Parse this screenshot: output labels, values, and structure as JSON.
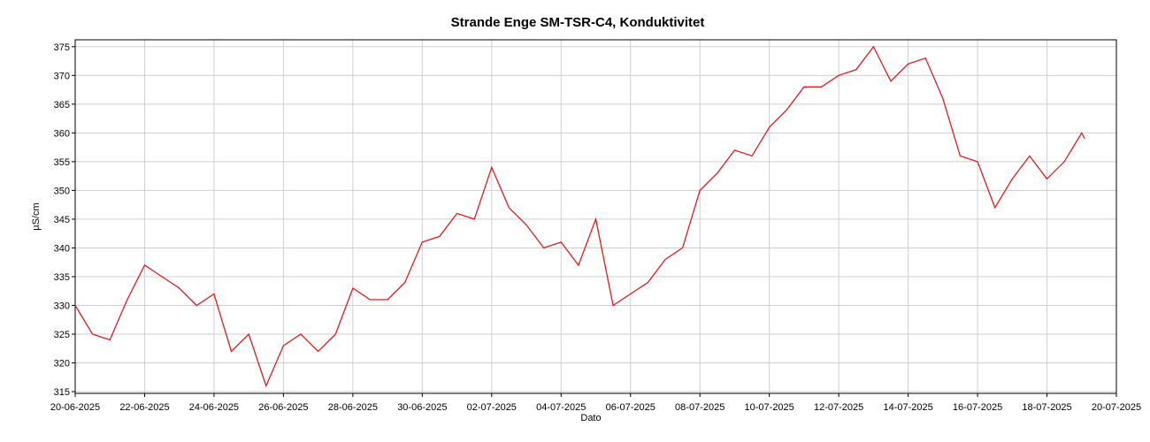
{
  "chart_data": {
    "type": "line",
    "title": "Strande Enge SM-TSR-C4, Konduktivitet",
    "xlabel": "Dato",
    "ylabel": "µS/cm",
    "grid": true,
    "x": [
      "2025-06-20T00:00",
      "2025-06-20T12:00",
      "2025-06-21T00:00",
      "2025-06-21T12:00",
      "2025-06-22T00:00",
      "2025-06-22T12:00",
      "2025-06-23T00:00",
      "2025-06-23T12:00",
      "2025-06-24T00:00",
      "2025-06-24T12:00",
      "2025-06-25T00:00",
      "2025-06-25T12:00",
      "2025-06-26T00:00",
      "2025-06-26T12:00",
      "2025-06-27T00:00",
      "2025-06-27T12:00",
      "2025-06-28T00:00",
      "2025-06-28T12:00",
      "2025-06-29T00:00",
      "2025-06-29T12:00",
      "2025-06-30T00:00",
      "2025-06-30T12:00",
      "2025-07-01T00:00",
      "2025-07-01T12:00",
      "2025-07-02T00:00",
      "2025-07-02T12:00",
      "2025-07-03T00:00",
      "2025-07-03T12:00",
      "2025-07-04T00:00",
      "2025-07-04T12:00",
      "2025-07-05T00:00",
      "2025-07-05T12:00",
      "2025-07-06T00:00",
      "2025-07-06T12:00",
      "2025-07-07T00:00",
      "2025-07-07T12:00",
      "2025-07-08T00:00",
      "2025-07-08T12:00",
      "2025-07-09T00:00",
      "2025-07-09T12:00",
      "2025-07-10T00:00",
      "2025-07-10T12:00",
      "2025-07-11T00:00",
      "2025-07-11T12:00",
      "2025-07-12T00:00",
      "2025-07-12T12:00",
      "2025-07-13T00:00",
      "2025-07-13T12:00",
      "2025-07-14T00:00",
      "2025-07-14T12:00",
      "2025-07-15T00:00",
      "2025-07-15T12:00",
      "2025-07-16T00:00",
      "2025-07-16T12:00",
      "2025-07-17T00:00",
      "2025-07-17T12:00",
      "2025-07-18T00:00",
      "2025-07-18T12:00",
      "2025-07-19T00:00",
      "2025-07-19T02:00"
    ],
    "series": [
      {
        "name": "Konduktivitet",
        "color": "#e31a1c",
        "values": [
          330,
          325,
          324,
          331,
          337,
          335,
          333,
          330,
          332,
          322,
          325,
          316,
          323,
          325,
          322,
          325,
          333,
          331,
          331,
          334,
          341,
          342,
          346,
          345,
          354,
          347,
          344,
          340,
          341,
          337,
          345,
          330,
          332,
          334,
          338,
          340,
          350,
          353,
          357,
          356,
          361,
          364,
          368,
          368,
          370,
          371,
          375,
          369,
          372,
          373,
          366,
          356,
          355,
          347,
          352,
          356,
          352,
          355,
          360,
          359
        ]
      }
    ],
    "xlim": [
      "2025-06-20",
      "2025-07-20"
    ],
    "xticks": [
      {
        "value": "2025-06-20",
        "label": "20-06-2025"
      },
      {
        "value": "2025-06-22",
        "label": "22-06-2025"
      },
      {
        "value": "2025-06-24",
        "label": "24-06-2025"
      },
      {
        "value": "2025-06-26",
        "label": "26-06-2025"
      },
      {
        "value": "2025-06-28",
        "label": "28-06-2025"
      },
      {
        "value": "2025-06-30",
        "label": "30-06-2025"
      },
      {
        "value": "2025-07-02",
        "label": "02-07-2025"
      },
      {
        "value": "2025-07-04",
        "label": "04-07-2025"
      },
      {
        "value": "2025-07-06",
        "label": "06-07-2025"
      },
      {
        "value": "2025-07-08",
        "label": "08-07-2025"
      },
      {
        "value": "2025-07-10",
        "label": "10-07-2025"
      },
      {
        "value": "2025-07-12",
        "label": "12-07-2025"
      },
      {
        "value": "2025-07-14",
        "label": "14-07-2025"
      },
      {
        "value": "2025-07-16",
        "label": "16-07-2025"
      },
      {
        "value": "2025-07-18",
        "label": "18-07-2025"
      },
      {
        "value": "2025-07-20",
        "label": "20-07-2025"
      }
    ],
    "ylim": [
      314.7,
      376.2
    ],
    "yticks": [
      315,
      320,
      325,
      330,
      335,
      340,
      345,
      350,
      355,
      360,
      365,
      370,
      375
    ]
  }
}
